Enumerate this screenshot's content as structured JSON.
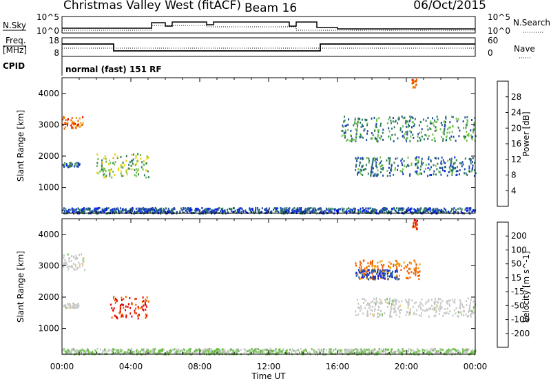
{
  "header": {
    "title": "Christmas Valley West (fitACF)",
    "beam": "Beam 16",
    "date": "06/Oct/2015"
  },
  "panels": {
    "sky": {
      "label": "N.Sky",
      "left_ticks": [
        "10^5",
        "10^0"
      ],
      "right_ticks": [
        "10^5",
        "10^0"
      ],
      "right_label": "N.Search"
    },
    "freq": {
      "label_line1": "Freq.",
      "label_line2": "[MHz]",
      "left_ticks": [
        "18",
        "8"
      ],
      "right_ticks": [
        "60",
        "0"
      ],
      "right_label": "Nave"
    },
    "cpid": {
      "label": "CPID",
      "text": "normal (fast) 151 RF"
    }
  },
  "time_axis": {
    "ticks": [
      "00:00",
      "04:00",
      "08:00",
      "12:00",
      "16:00",
      "20:00",
      "00:00"
    ],
    "label": "Time UT"
  },
  "chart_data": [
    {
      "type": "heatmap",
      "name": "power",
      "ylabel": "Slant Range [km]",
      "yticks": [
        1000,
        2000,
        3000,
        4000
      ],
      "ylim": [
        180,
        4500
      ],
      "xlim": [
        0,
        24
      ],
      "colorbar": {
        "label": "Power [dB]",
        "ticks": [
          "28",
          "24",
          "20",
          "16",
          "12",
          "8",
          "4"
        ],
        "range": [
          0,
          30
        ]
      },
      "colors": [
        "#0a1ef0",
        "#1f4aa8",
        "#2e7d5a",
        "#6cc04a",
        "#e8d000",
        "#f0a000",
        "#f06000",
        "#f00000"
      ],
      "echo_bands": [
        {
          "t": [
            0.0,
            1.2
          ],
          "range": [
            2900,
            3300
          ],
          "db": 24
        },
        {
          "t": [
            0.0,
            1.0
          ],
          "range": [
            1680,
            1820
          ],
          "db": 8
        },
        {
          "t": [
            2.0,
            5.0
          ],
          "range": [
            1350,
            2100
          ],
          "db": 14
        },
        {
          "t": [
            16.2,
            24.0
          ],
          "range": [
            2500,
            3300
          ],
          "db": 10
        },
        {
          "t": [
            17.0,
            24.0
          ],
          "range": [
            1400,
            2000
          ],
          "db": 8
        },
        {
          "t": [
            20.3,
            20.6
          ],
          "range": [
            4200,
            4500
          ],
          "db": 24
        },
        {
          "t": [
            0.0,
            24.0
          ],
          "range": [
            200,
            380
          ],
          "db": 6
        }
      ]
    },
    {
      "type": "heatmap",
      "name": "velocity",
      "ylabel": "Slant Range [km]",
      "yticks": [
        1000,
        2000,
        3000,
        4000
      ],
      "ylim": [
        180,
        4500
      ],
      "xlim": [
        0,
        24
      ],
      "colorbar": {
        "label": "Velocity [m s^-1]",
        "ticks": [
          "200",
          "100",
          "50",
          "15",
          "-15",
          "-50",
          "-100",
          "-200"
        ],
        "range": [
          -250,
          250
        ]
      },
      "colors": [
        "#e00000",
        "#f06000",
        "#f5a000",
        "#f0c870",
        "#c8c8c8",
        "#6cc04a",
        "#2e8b3a",
        "#1f5aa8",
        "#1a1ad0"
      ],
      "echo_bands": [
        {
          "t": [
            0.0,
            1.3
          ],
          "range": [
            2900,
            3400
          ],
          "vel": 0
        },
        {
          "t": [
            0.0,
            1.0
          ],
          "range": [
            1680,
            1820
          ],
          "vel": 0
        },
        {
          "t": [
            2.8,
            5.0
          ],
          "range": [
            1350,
            2050
          ],
          "vel": -200
        },
        {
          "t": [
            17.0,
            20.8
          ],
          "range": [
            2600,
            3200
          ],
          "vel": -150
        },
        {
          "t": [
            17.0,
            19.5
          ],
          "range": [
            2600,
            2900
          ],
          "vel": 180
        },
        {
          "t": [
            17.0,
            24.0
          ],
          "range": [
            1400,
            2000
          ],
          "vel": 0
        },
        {
          "t": [
            20.3,
            20.6
          ],
          "range": [
            4200,
            4500
          ],
          "vel": -200
        },
        {
          "t": [
            0.0,
            24.0
          ],
          "range": [
            200,
            380
          ],
          "vel": 30
        }
      ]
    }
  ]
}
